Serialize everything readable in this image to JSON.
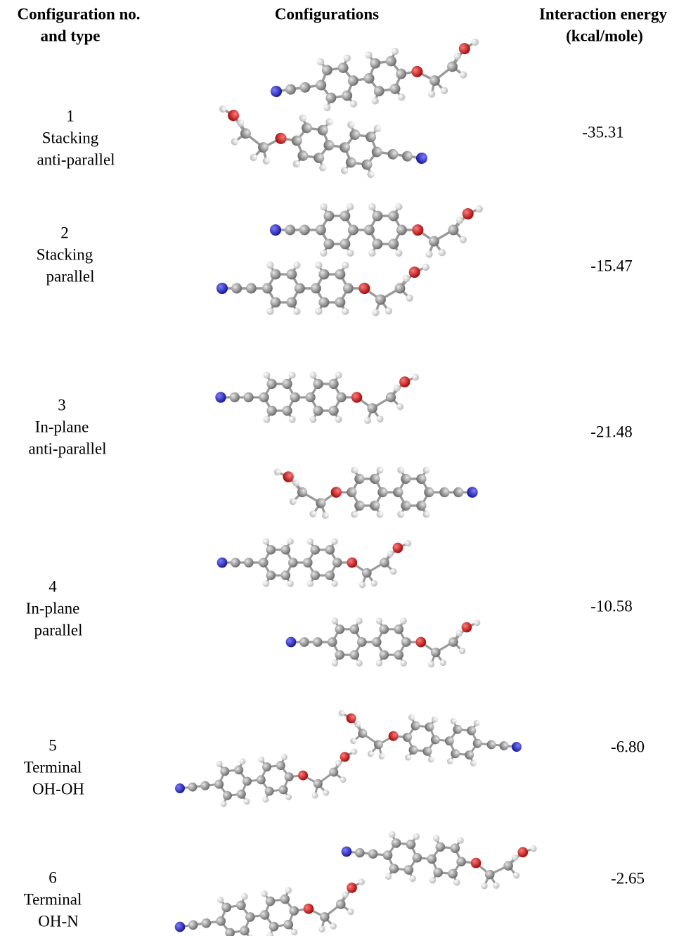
{
  "header": {
    "col1": [
      "Configuration no.",
      "and type"
    ],
    "col2": "Configurations",
    "col3": [
      "Interaction energy",
      "(kcal/mole)"
    ]
  },
  "rows": [
    {
      "no": "1",
      "type": [
        "Stacking",
        "anti-parallel"
      ],
      "energy": "-35.31"
    },
    {
      "no": "2",
      "type": [
        "Stacking",
        "parallel"
      ],
      "energy": "-15.47"
    },
    {
      "no": "3",
      "type": [
        "In-plane",
        "anti-parallel"
      ],
      "energy": "-21.48"
    },
    {
      "no": "4",
      "type": [
        "In-plane",
        "parallel"
      ],
      "energy": "-10.58"
    },
    {
      "no": "5",
      "type": [
        "Terminal",
        "OH-OH"
      ],
      "energy": "-6.80"
    },
    {
      "no": "6",
      "type": [
        "Terminal",
        "OH-N"
      ],
      "energy": "-2.65"
    }
  ]
}
